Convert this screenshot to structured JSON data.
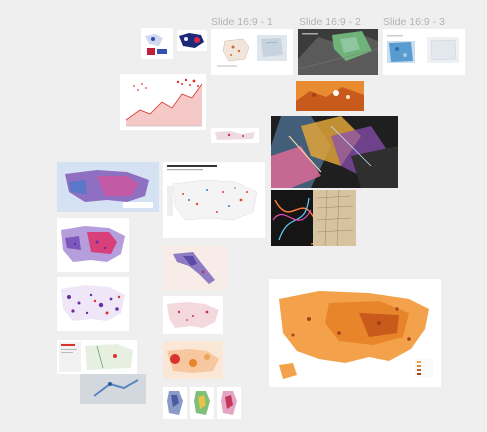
{
  "canvas": {
    "background": "#efefef",
    "frame_labels": [
      "Slide 16:9 - 1",
      "Slide 16:9 - 2",
      "Slide 16:9 - 3"
    ]
  },
  "colors": {
    "label": "#b3b3b3",
    "map_orange": "#e8852a",
    "map_dark": "#1f1f1f",
    "map_red": "#d9342b",
    "map_purple": "#6b2fa0",
    "map_blue": "#5a78c8"
  }
}
